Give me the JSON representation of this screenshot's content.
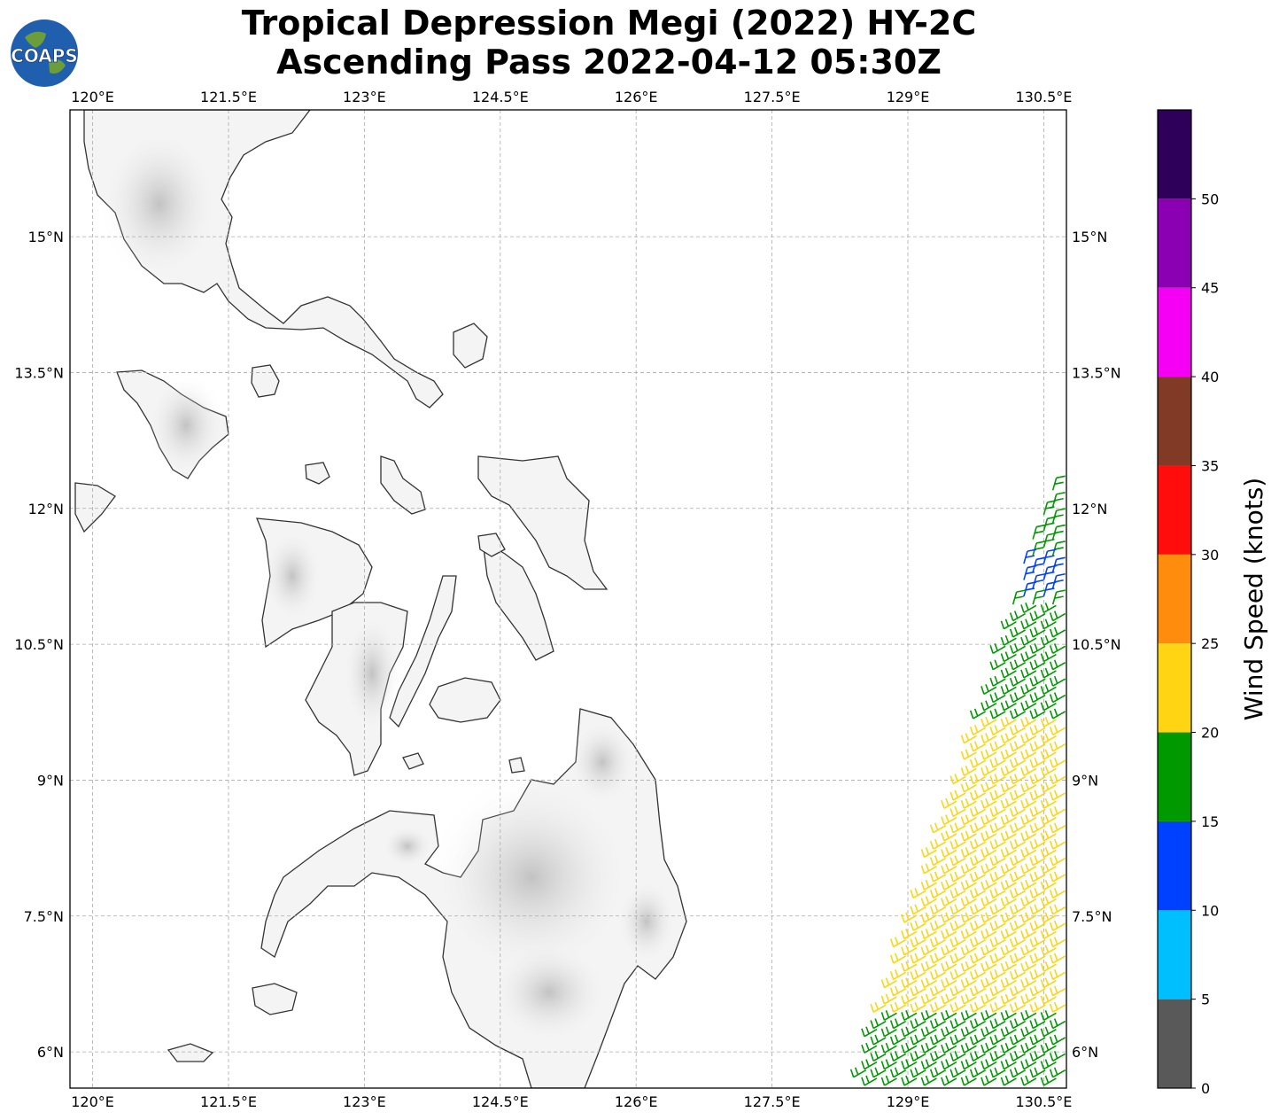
{
  "header": {
    "title_line1": "Tropical Depression Megi (2022) HY-2C",
    "title_line2": "Ascending Pass 2022-04-12 05:30Z",
    "logo_text": "COAPS"
  },
  "map": {
    "lon_range": [
      119.75,
      130.75
    ],
    "lat_range": [
      5.6,
      16.4
    ],
    "lon_ticks": [
      "120°E",
      "121.5°E",
      "123°E",
      "124.5°E",
      "126°E",
      "127.5°E",
      "129°E",
      "130.5°E"
    ],
    "lat_ticks": [
      "15°N",
      "13.5°N",
      "12°N",
      "10.5°N",
      "9°N",
      "7.5°N",
      "6°N"
    ],
    "lon_tick_values": [
      120,
      121.5,
      123,
      124.5,
      126,
      127.5,
      129,
      130.5
    ],
    "lat_tick_values": [
      15,
      13.5,
      12,
      10.5,
      9,
      7.5,
      6
    ],
    "gridlines": true,
    "background": "grayscale topography with coastlines"
  },
  "colorbar": {
    "title": "Wind Speed (knots)",
    "tick_labels": [
      "0",
      "5",
      "10",
      "15",
      "20",
      "25",
      "30",
      "35",
      "40",
      "45",
      "50"
    ],
    "bins": [
      {
        "from": 0,
        "to": 5,
        "color": "#595959"
      },
      {
        "from": 5,
        "to": 10,
        "color": "#00bfff"
      },
      {
        "from": 10,
        "to": 15,
        "color": "#0040ff"
      },
      {
        "from": 15,
        "to": 20,
        "color": "#009900"
      },
      {
        "from": 20,
        "to": 25,
        "color": "#ffd412"
      },
      {
        "from": 25,
        "to": 30,
        "color": "#ff8c0d"
      },
      {
        "from": 30,
        "to": 35,
        "color": "#ff0d0d"
      },
      {
        "from": 35,
        "to": 40,
        "color": "#803a26"
      },
      {
        "from": 40,
        "to": 45,
        "color": "#f500f5"
      },
      {
        "from": 45,
        "to": 50,
        "color": "#8c00b3"
      },
      {
        "from": 50,
        "to": 55,
        "color": "#2e0059"
      }
    ]
  },
  "wind_swath": {
    "lat_bands": [
      {
        "from": 12.4,
        "to": 11.4,
        "color": "#009900"
      },
      {
        "from": 11.4,
        "to": 11.0,
        "color": "#0040ff"
      },
      {
        "from": 11.0,
        "to": 9.6,
        "color": "#009900"
      },
      {
        "from": 9.6,
        "to": 6.4,
        "color": "#ffd412"
      },
      {
        "from": 6.4,
        "to": 5.6,
        "color": "#009900"
      }
    ]
  }
}
